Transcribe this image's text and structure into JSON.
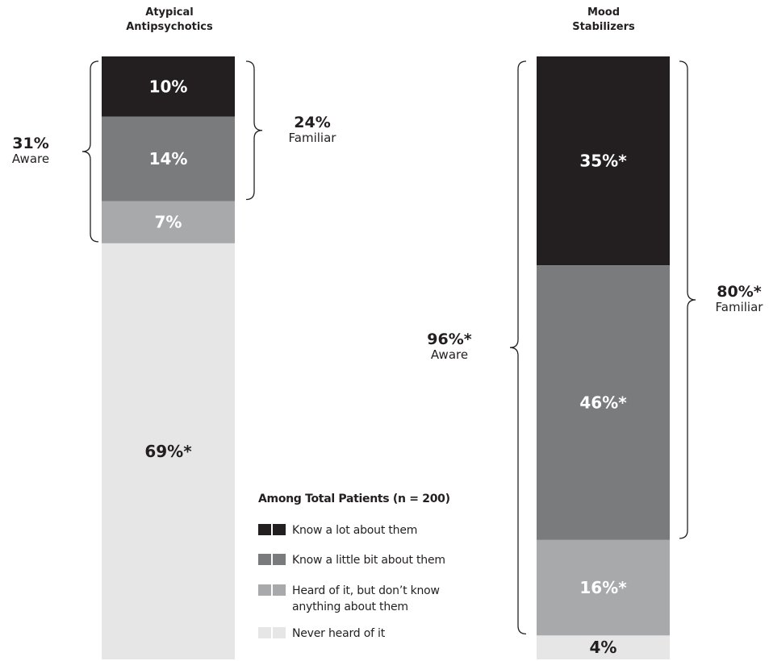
{
  "chart_data": {
    "type": "bar",
    "stacked": true,
    "orientation": "vertical",
    "categories": [
      [
        "Atypical",
        "Antipsychotics"
      ],
      [
        "Mood",
        "Stabilizers"
      ]
    ],
    "series": [
      {
        "name": "Know a lot about them",
        "values": [
          10,
          35
        ],
        "labels": [
          "10%",
          "35%*"
        ],
        "color": "#231f20",
        "text_color": "#ffffff"
      },
      {
        "name": "Know a little bit about them",
        "values": [
          14,
          46
        ],
        "labels": [
          "14%",
          "46%*"
        ],
        "color": "#7a7b7d",
        "text_color": "#ffffff"
      },
      {
        "name": "Heard of it, but don’t know anything about them",
        "legend_lines": [
          "Heard of it, but don’t know",
          "anything about them"
        ],
        "values": [
          7,
          16
        ],
        "labels": [
          "7%",
          "16%*"
        ],
        "color": "#a8a9ab",
        "text_color": "#ffffff"
      },
      {
        "name": "Never heard of it",
        "values": [
          69,
          4
        ],
        "labels": [
          "69%*",
          "4%"
        ],
        "color": "#e6e6e7",
        "text_color": "#231f20"
      }
    ],
    "brackets": [
      {
        "bar": 0,
        "side": "left",
        "from_series": 0,
        "to_series": 2,
        "value": "31%",
        "label": "Aware"
      },
      {
        "bar": 0,
        "side": "right",
        "from_series": 0,
        "to_series": 1,
        "value": "24%",
        "label": "Familiar"
      },
      {
        "bar": 1,
        "side": "left",
        "from_series": 0,
        "to_series": 2,
        "value": "96%*",
        "label": "Aware"
      },
      {
        "bar": 1,
        "side": "right",
        "from_series": 0,
        "to_series": 1,
        "value": "80%*",
        "label": "Familiar"
      }
    ],
    "legend": {
      "title": "Among Total Patients (n = 200)",
      "placement": "bottom-center"
    },
    "ylim": [
      0,
      100
    ]
  }
}
